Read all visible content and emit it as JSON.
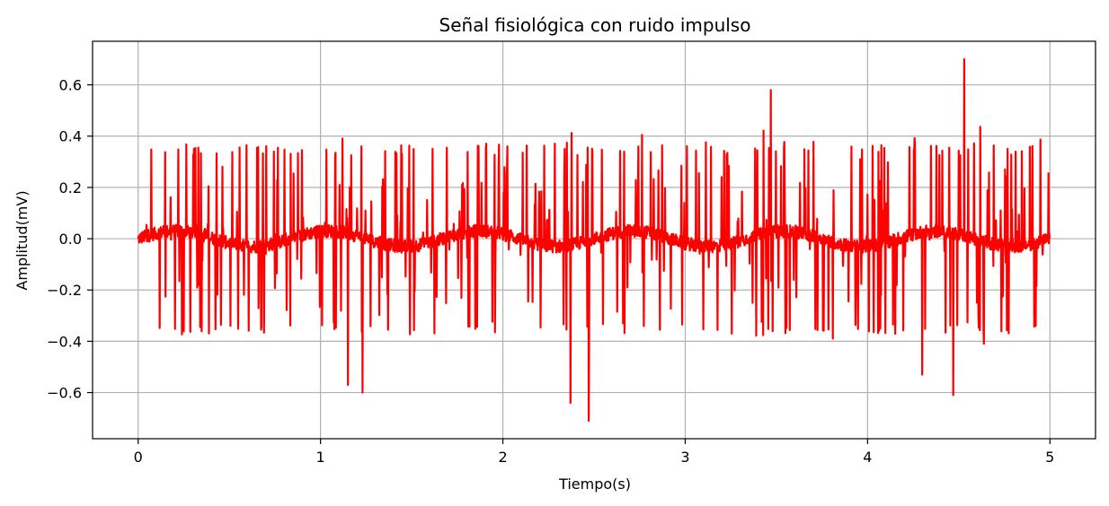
{
  "chart_data": {
    "type": "line",
    "title": "Señal fisiológica con ruido impulso",
    "xlabel": "Tiempo(s)",
    "ylabel": "Amplitud(mV)",
    "xlim": [
      -0.25,
      5.25
    ],
    "ylim": [
      -0.78,
      0.77
    ],
    "xticks": [
      0,
      1,
      2,
      3,
      4,
      5
    ],
    "xtick_labels": [
      "0",
      "1",
      "2",
      "3",
      "4",
      "5"
    ],
    "yticks": [
      -0.6,
      -0.4,
      -0.2,
      0.0,
      0.2,
      0.4,
      0.6
    ],
    "ytick_labels": [
      "−0.6",
      "−0.4",
      "−0.2",
      "0.0",
      "0.2",
      "0.4",
      "0.6"
    ],
    "grid": true,
    "series": [
      {
        "color": "#ff0000",
        "x_range": [
          0,
          5
        ],
        "y_range": [
          -0.71,
          0.7
        ],
        "extremes": [
          {
            "x": 1.23,
            "y": -0.6
          },
          {
            "x": 1.15,
            "y": -0.57
          },
          {
            "x": 2.37,
            "y": -0.64
          },
          {
            "x": 2.47,
            "y": -0.71
          },
          {
            "x": 3.47,
            "y": 0.58
          },
          {
            "x": 4.53,
            "y": 0.7
          },
          {
            "x": 4.47,
            "y": -0.61
          },
          {
            "x": 4.3,
            "y": -0.53
          }
        ]
      }
    ]
  }
}
